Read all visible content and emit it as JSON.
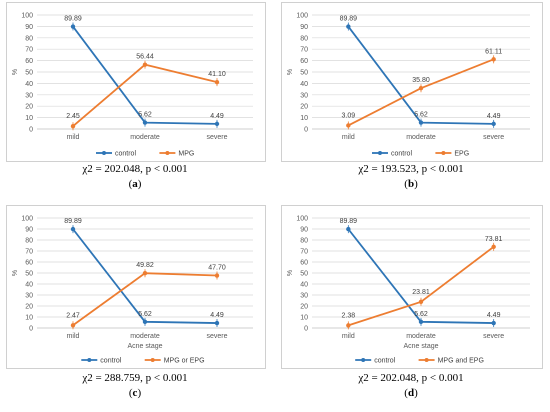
{
  "colors": {
    "control": "#2e75b6",
    "treatment": "#ed7d31",
    "grid": "#d9d9d9"
  },
  "chart_data": [
    {
      "id": "a",
      "type": "line",
      "categories": [
        "mild",
        "moderate",
        "severe"
      ],
      "ylabel": "%",
      "xlabel": "",
      "ylim": [
        0,
        100
      ],
      "ystep": 10,
      "series": [
        {
          "name": "control",
          "values": [
            89.89,
            5.62,
            4.49
          ],
          "labels": [
            "89.89",
            "5.62",
            "4.49"
          ]
        },
        {
          "name": "MPG",
          "values": [
            2.45,
            56.44,
            41.1
          ],
          "labels": [
            "2.45",
            "56.44",
            "41.10"
          ]
        }
      ],
      "caption_stat": "χ2 = 202.048, p < 0.001",
      "caption_letter": "a"
    },
    {
      "id": "b",
      "type": "line",
      "categories": [
        "mild",
        "moderate",
        "severe"
      ],
      "ylabel": "%",
      "xlabel": "",
      "ylim": [
        0,
        100
      ],
      "ystep": 10,
      "series": [
        {
          "name": "control",
          "values": [
            89.89,
            5.62,
            4.49
          ],
          "labels": [
            "89.89",
            "5.62",
            "4.49"
          ]
        },
        {
          "name": "EPG",
          "values": [
            3.09,
            35.8,
            61.11
          ],
          "labels": [
            "3.09",
            "35.80",
            "61.11"
          ]
        }
      ],
      "caption_stat": "χ2 = 193.523, p < 0.001",
      "caption_letter": "b"
    },
    {
      "id": "c",
      "type": "line",
      "categories": [
        "mild",
        "moderate",
        "severe"
      ],
      "ylabel": "%",
      "xlabel": "Acne stage",
      "ylim": [
        0,
        100
      ],
      "ystep": 10,
      "series": [
        {
          "name": "control",
          "values": [
            89.89,
            5.62,
            4.49
          ],
          "labels": [
            "89.89",
            "5.62",
            "4.49"
          ]
        },
        {
          "name": "MPG or EPG",
          "values": [
            2.47,
            49.82,
            47.7
          ],
          "labels": [
            "2.47",
            "49.82",
            "47.70"
          ]
        }
      ],
      "caption_stat": "χ2 = 288.759, p < 0.001",
      "caption_letter": "c"
    },
    {
      "id": "d",
      "type": "line",
      "categories": [
        "mild",
        "moderate",
        "severe"
      ],
      "ylabel": "%",
      "xlabel": "Acne stage",
      "ylim": [
        0,
        100
      ],
      "ystep": 10,
      "series": [
        {
          "name": "control",
          "values": [
            89.89,
            5.62,
            4.49
          ],
          "labels": [
            "89.89",
            "5.62",
            "4.49"
          ]
        },
        {
          "name": "MPG and EPG",
          "values": [
            2.38,
            23.81,
            73.81
          ],
          "labels": [
            "2.38",
            "23.81",
            "73.81"
          ]
        }
      ],
      "caption_stat": "χ2 = 202.048, p < 0.001",
      "caption_letter": "d"
    }
  ]
}
